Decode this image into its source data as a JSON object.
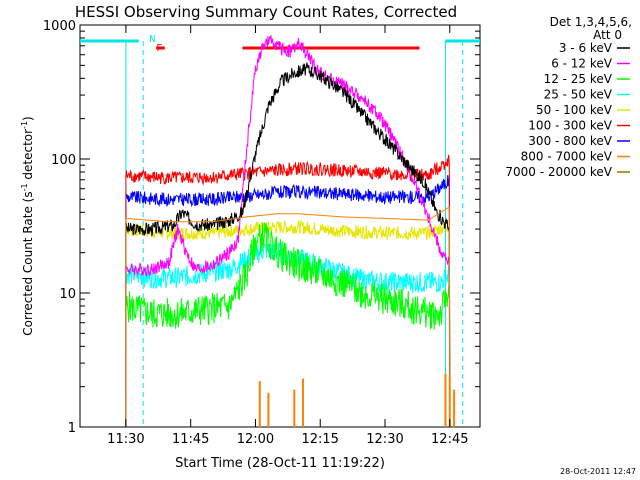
{
  "chart_data": {
    "type": "line",
    "title": "HESSI Observing Summary Count Rates, Corrected",
    "xlabel": "Start Time (28-Oct-11 11:19:22)",
    "ylabel_main": "Corrected Count Rate (s",
    "ylabel_sup1": "-1",
    "ylabel_mid": " detector",
    "ylabel_sup2": "-1",
    "ylabel_end": ")",
    "yscale": "log",
    "ylim": [
      1,
      1000
    ],
    "xlim": [
      "11:19:22",
      "12:52:00"
    ],
    "x_ticks": [
      "11:30",
      "11:45",
      "12:00",
      "12:15",
      "12:30",
      "12:45"
    ],
    "y_ticks": [
      "1",
      "10",
      "100",
      "1000"
    ],
    "legend_header": [
      "Det 1,3,4,5,6,",
      "Att 0"
    ],
    "timestamp": "28-Oct-2011 12:47",
    "flags": {
      "N": "N",
      "F": "F"
    },
    "colors": {
      "night_bar": "#00e6e6",
      "flare_bar": "#ff0000",
      "axis": "#000000"
    },
    "events": {
      "night_end": "11:33",
      "night_start": "12:44",
      "data_start": "11:30",
      "data_end": "12:45",
      "saa_dashed": [
        "11:34",
        "12:48"
      ],
      "flare_flag_short": [
        "11:37",
        "11:39"
      ],
      "flare_flag_long": [
        "11:57",
        "12:38"
      ]
    },
    "series": [
      {
        "name": "3 - 6 keV",
        "color": "#000000",
        "x": [
          "11:30",
          "11:36",
          "11:41",
          "11:43",
          "11:46",
          "11:50",
          "11:54",
          "11:57",
          "12:00",
          "12:03",
          "12:06",
          "12:09",
          "12:12",
          "12:15",
          "12:18",
          "12:21",
          "12:24",
          "12:27",
          "12:30",
          "12:33",
          "12:36",
          "12:39",
          "12:42",
          "12:45"
        ],
        "values": [
          30,
          30,
          32,
          40,
          33,
          32,
          35,
          40,
          110,
          250,
          380,
          440,
          470,
          420,
          360,
          300,
          230,
          180,
          140,
          110,
          85,
          68,
          40,
          30
        ]
      },
      {
        "name": "6 - 12 keV",
        "color": "#ff00ff",
        "x": [
          "11:30",
          "11:36",
          "11:40",
          "11:42",
          "11:44",
          "11:46",
          "11:50",
          "11:54",
          "11:56",
          "11:58",
          "12:00",
          "12:02",
          "12:04",
          "12:06",
          "12:08",
          "12:10",
          "12:12",
          "12:14",
          "12:17",
          "12:20",
          "12:23",
          "12:26",
          "12:29",
          "12:32",
          "12:35",
          "12:38",
          "12:41",
          "12:43",
          "12:45"
        ],
        "values": [
          15,
          15,
          17,
          30,
          20,
          15,
          16,
          20,
          25,
          120,
          480,
          720,
          760,
          660,
          640,
          720,
          600,
          470,
          400,
          360,
          310,
          260,
          200,
          140,
          90,
          55,
          30,
          20,
          16
        ]
      },
      {
        "name": "12 - 25 keV",
        "color": "#00ff00",
        "x": [
          "11:30",
          "11:36",
          "11:42",
          "11:48",
          "11:54",
          "11:58",
          "12:00",
          "12:02",
          "12:04",
          "12:06",
          "12:10",
          "12:15",
          "12:20",
          "12:25",
          "12:30",
          "12:35",
          "12:40",
          "12:43",
          "12:45"
        ],
        "values": [
          8,
          7,
          7,
          7.5,
          8,
          14,
          24,
          27,
          22,
          19,
          16,
          14,
          12,
          10,
          9,
          8,
          7,
          7,
          12
        ]
      },
      {
        "name": "25 - 50 keV",
        "color": "#00ffff",
        "x": [
          "11:30",
          "11:36",
          "11:42",
          "11:48",
          "11:54",
          "11:58",
          "12:02",
          "12:06",
          "12:10",
          "12:15",
          "12:20",
          "12:25",
          "12:30",
          "12:35",
          "12:40",
          "12:43",
          "12:45"
        ],
        "values": [
          14,
          13,
          13,
          14,
          15,
          18,
          21,
          20,
          18,
          16,
          14,
          12.5,
          12,
          12,
          12,
          12,
          14
        ]
      },
      {
        "name": "50 - 100 keV",
        "color": "#e6e600",
        "x": [
          "11:30",
          "11:40",
          "11:50",
          "11:58",
          "12:05",
          "12:10",
          "12:20",
          "12:30",
          "12:40",
          "12:45"
        ],
        "values": [
          30,
          28,
          28,
          30,
          31,
          31,
          29,
          28,
          28,
          32
        ]
      },
      {
        "name": "100 - 300 keV",
        "color": "#ff0000",
        "x": [
          "11:30",
          "11:40",
          "11:50",
          "11:58",
          "12:05",
          "12:10",
          "12:15",
          "12:20",
          "12:30",
          "12:40",
          "12:45"
        ],
        "values": [
          75,
          72,
          73,
          78,
          82,
          85,
          84,
          82,
          78,
          75,
          100
        ]
      },
      {
        "name": "300 - 800 keV",
        "color": "#0000ff",
        "x": [
          "11:30",
          "11:40",
          "11:50",
          "11:58",
          "12:05",
          "12:10",
          "12:15",
          "12:20",
          "12:30",
          "12:40",
          "12:45"
        ],
        "values": [
          52,
          50,
          50,
          53,
          56,
          57,
          56,
          55,
          52,
          52,
          70
        ]
      },
      {
        "name": "800 - 7000 keV",
        "color": "#ff8000",
        "x": [
          "11:30",
          "11:40",
          "11:50",
          "11:58",
          "12:05",
          "12:10",
          "12:15",
          "12:20",
          "12:30",
          "12:40",
          "12:45"
        ],
        "values": [
          36,
          34,
          34,
          37,
          39,
          39,
          38,
          37,
          36,
          35,
          44
        ]
      },
      {
        "name": "7000 - 20000 keV",
        "color": "#808000",
        "x": [
          "11:30",
          "11:45",
          "12:00",
          "12:15",
          "12:30",
          "12:45"
        ],
        "values": [
          1,
          1,
          1,
          1,
          1,
          1
        ]
      }
    ]
  }
}
